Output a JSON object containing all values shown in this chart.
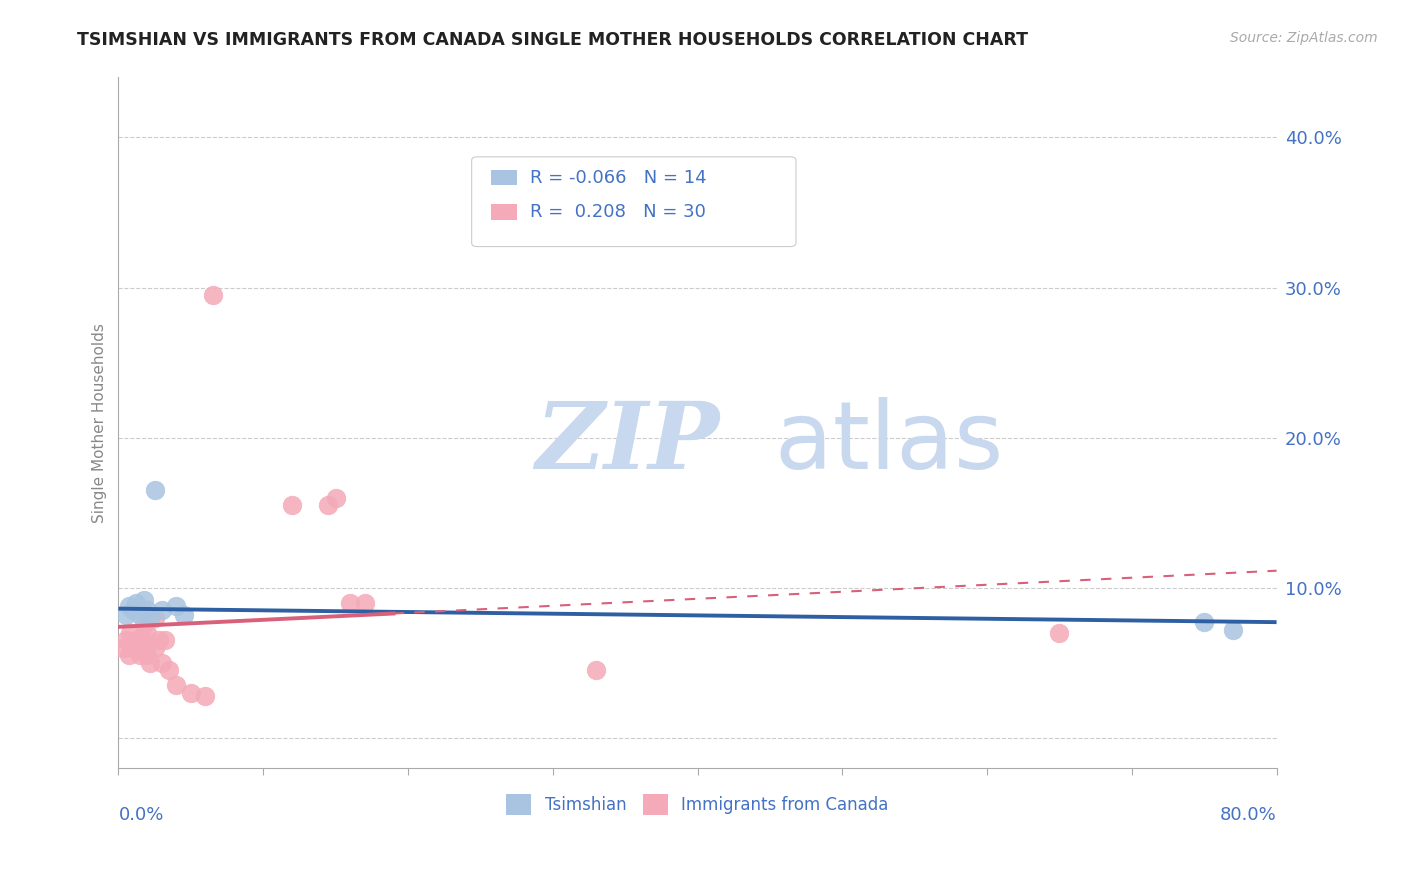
{
  "title": "TSIMSHIAN VS IMMIGRANTS FROM CANADA SINGLE MOTHER HOUSEHOLDS CORRELATION CHART",
  "source": "Source: ZipAtlas.com",
  "ylabel": "Single Mother Households",
  "xlim": [
    0.0,
    0.8
  ],
  "ylim": [
    -0.02,
    0.44
  ],
  "background_color": "#ffffff",
  "grid_color": "#cccccc",
  "text_color": "#4472c4",
  "legend_label1": "Tsimshian",
  "legend_label2": "Immigrants from Canada",
  "r1": -0.066,
  "n1": 14,
  "r2": 0.208,
  "n2": 30,
  "blue_color": "#a8c4e0",
  "pink_color": "#f4aab8",
  "blue_line_color": "#2e5fa3",
  "pink_line_color": "#d9607a",
  "blue_scatter_x": [
    0.005,
    0.007,
    0.01,
    0.012,
    0.015,
    0.018,
    0.02,
    0.022,
    0.025,
    0.03,
    0.04,
    0.045,
    0.75,
    0.77
  ],
  "blue_scatter_y": [
    0.082,
    0.088,
    0.085,
    0.09,
    0.082,
    0.092,
    0.085,
    0.08,
    0.165,
    0.085,
    0.088,
    0.082,
    0.077,
    0.072
  ],
  "pink_scatter_x": [
    0.003,
    0.005,
    0.007,
    0.008,
    0.01,
    0.012,
    0.014,
    0.015,
    0.017,
    0.018,
    0.02,
    0.02,
    0.022,
    0.025,
    0.025,
    0.028,
    0.03,
    0.032,
    0.035,
    0.04,
    0.05,
    0.06,
    0.065,
    0.12,
    0.145,
    0.15,
    0.16,
    0.17,
    0.33,
    0.65
  ],
  "pink_scatter_y": [
    0.06,
    0.065,
    0.055,
    0.07,
    0.06,
    0.065,
    0.06,
    0.055,
    0.065,
    0.075,
    0.055,
    0.07,
    0.05,
    0.06,
    0.08,
    0.065,
    0.05,
    0.065,
    0.045,
    0.035,
    0.03,
    0.028,
    0.295,
    0.155,
    0.155,
    0.16,
    0.09,
    0.09,
    0.045,
    0.07
  ],
  "watermark_zip": "ZIP",
  "watermark_atlas": "atlas",
  "watermark_color_zip": "#c8d8ee",
  "watermark_color_atlas": "#c8d8ee",
  "ytick_values": [
    0.0,
    0.1,
    0.2,
    0.3,
    0.4
  ],
  "ytick_labels": [
    "",
    "10.0%",
    "20.0%",
    "30.0%",
    "40.0%"
  ]
}
